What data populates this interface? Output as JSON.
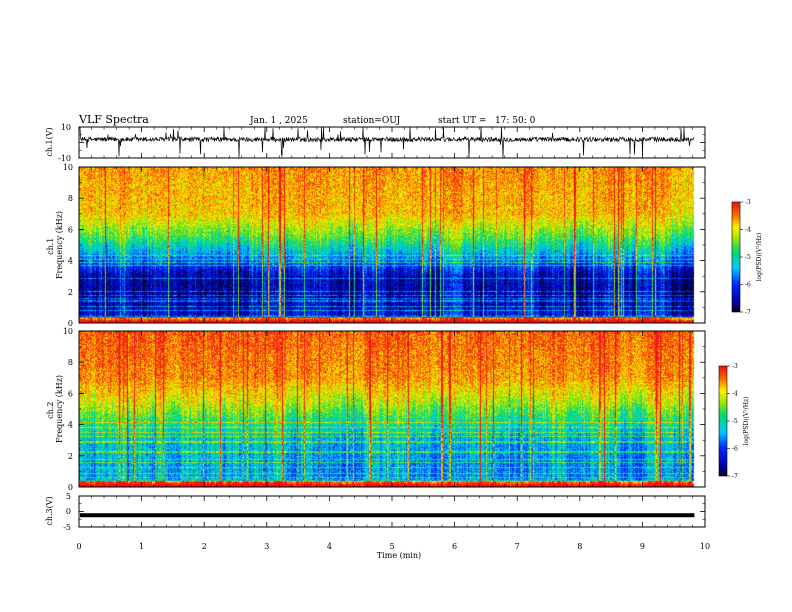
{
  "header": {
    "title": "VLF Spectra",
    "date": "Jan. 1 , 2025",
    "station": "station=OUJ",
    "start": "start UT =   17: 50: 0"
  },
  "chart_data": [
    {
      "type": "line",
      "name": "waveform-ch1",
      "ylabel": "ch.1(V)",
      "ylim": [
        -10,
        10
      ],
      "yticks": [
        "10",
        "-10"
      ],
      "xlim": [
        0,
        10
      ],
      "baseline": 2,
      "noise_amplitude": 1.5,
      "spikes_range": [
        -10,
        10
      ]
    },
    {
      "type": "heatmap",
      "name": "spectrogram-ch1",
      "ylabel": "ch.1\nFrequency (kHz)",
      "ylim": [
        0,
        10
      ],
      "yticks": [
        "0",
        "2",
        "4",
        "6",
        "8",
        "10"
      ],
      "xlim": [
        0,
        10
      ],
      "data_end_min": 9.83,
      "colorbar": {
        "label": "log(PSD)(V²/Hz)",
        "range": [
          -7,
          -3
        ],
        "ticks": [
          "-3",
          "-4",
          "-5",
          "-6",
          "-7"
        ]
      },
      "profile_note_freq_kHz": [
        0,
        0.5,
        1.5,
        3,
        4.2,
        5.5,
        7,
        10
      ],
      "profile_logpsd": [
        -3.8,
        -6.3,
        -6.6,
        -6.5,
        -5.6,
        -4.6,
        -3.8,
        -3.6
      ]
    },
    {
      "type": "heatmap",
      "name": "spectrogram-ch2",
      "ylabel": "ch.2\nFrequency (kHz)",
      "ylim": [
        0,
        10
      ],
      "yticks": [
        "0",
        "2",
        "4",
        "6",
        "8",
        "10"
      ],
      "xlim": [
        0,
        10
      ],
      "data_end_min": 9.83,
      "colorbar": {
        "label": "log(PSD)(V²/Hz)",
        "range": [
          -7,
          -3
        ],
        "ticks": [
          "-3",
          "-4",
          "-5",
          "-6",
          "-7"
        ]
      },
      "profile_note_freq_kHz": [
        0,
        0.5,
        1.5,
        3,
        4.2,
        5.5,
        7,
        10
      ],
      "profile_logpsd": [
        -4.0,
        -5.6,
        -5.6,
        -5.4,
        -4.9,
        -4.2,
        -3.6,
        -3.4
      ]
    },
    {
      "type": "line",
      "name": "waveform-ch3",
      "ylabel": "ch.3(V)",
      "ylim": [
        -5,
        5
      ],
      "yticks": [
        "5",
        "0",
        "-5"
      ],
      "xlim": [
        0,
        10
      ],
      "baseline": -1.2,
      "noise_amplitude": 0.15
    }
  ],
  "x_axis": {
    "label": "Time (min)",
    "ticks": [
      "0",
      "1",
      "2",
      "3",
      "4",
      "5",
      "6",
      "7",
      "8",
      "9",
      "10"
    ]
  }
}
